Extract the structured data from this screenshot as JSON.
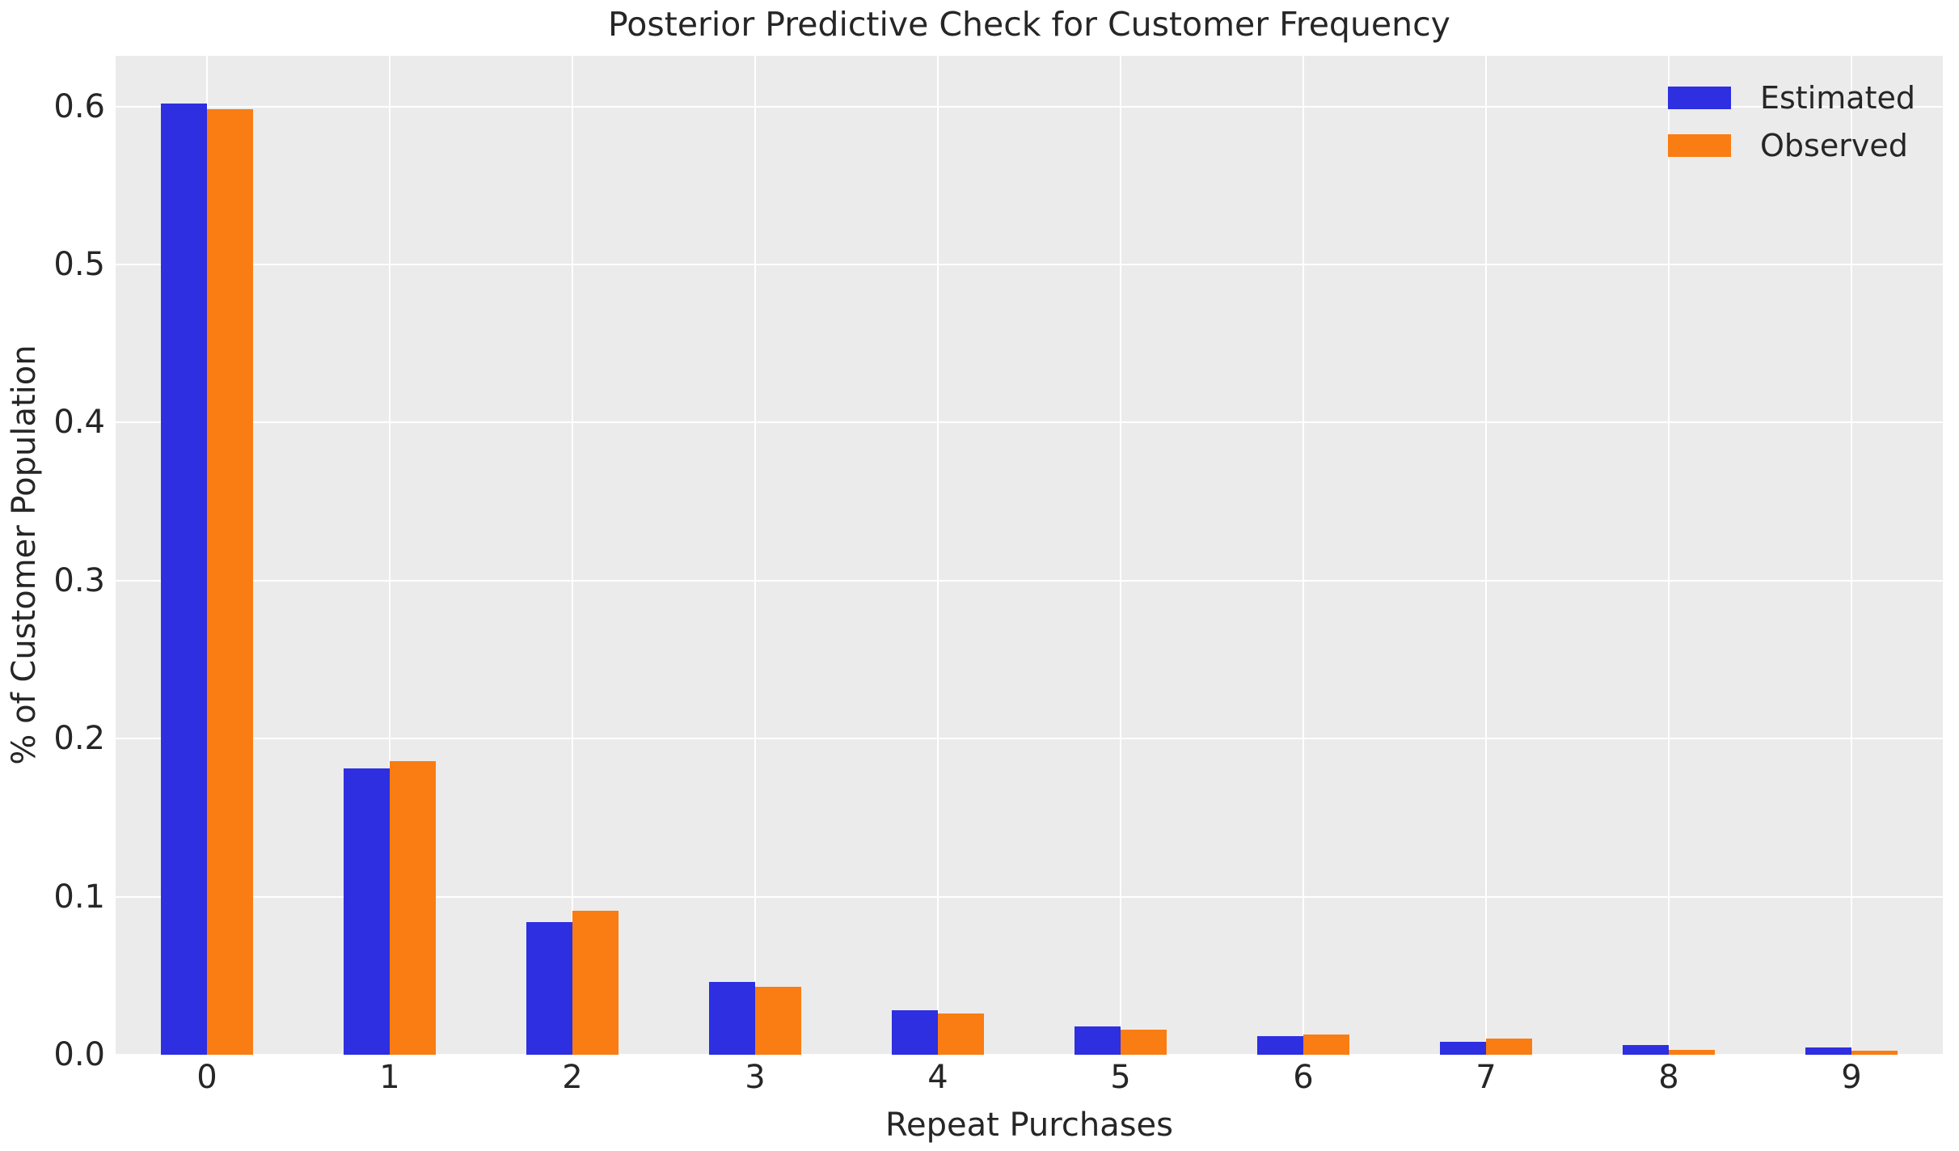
{
  "title": "Posterior Predictive Check for Customer Frequency",
  "chart_data": {
    "type": "bar",
    "title": "Posterior Predictive Check for Customer Frequency",
    "xlabel": "Repeat Purchases",
    "ylabel": "% of Customer Population",
    "categories": [
      "0",
      "1",
      "2",
      "3",
      "4",
      "5",
      "6",
      "7",
      "8",
      "9"
    ],
    "series": [
      {
        "name": "Estimated",
        "color": "#2d2fe0",
        "values": [
          0.602,
          0.181,
          0.084,
          0.046,
          0.028,
          0.018,
          0.012,
          0.008,
          0.006,
          0.0045
        ]
      },
      {
        "name": "Observed",
        "color": "#f97d12",
        "values": [
          0.598,
          0.186,
          0.091,
          0.043,
          0.026,
          0.016,
          0.013,
          0.01,
          0.003,
          0.0025
        ]
      }
    ],
    "ylim": [
      0,
      0.632
    ],
    "yticks": [
      "0.0",
      "0.1",
      "0.2",
      "0.3",
      "0.4",
      "0.5",
      "0.6"
    ],
    "grid": true,
    "grid_color": "#ffffff",
    "plot_background": "#ebebeb",
    "text_color": "#262626",
    "legend_position": "upper right"
  }
}
